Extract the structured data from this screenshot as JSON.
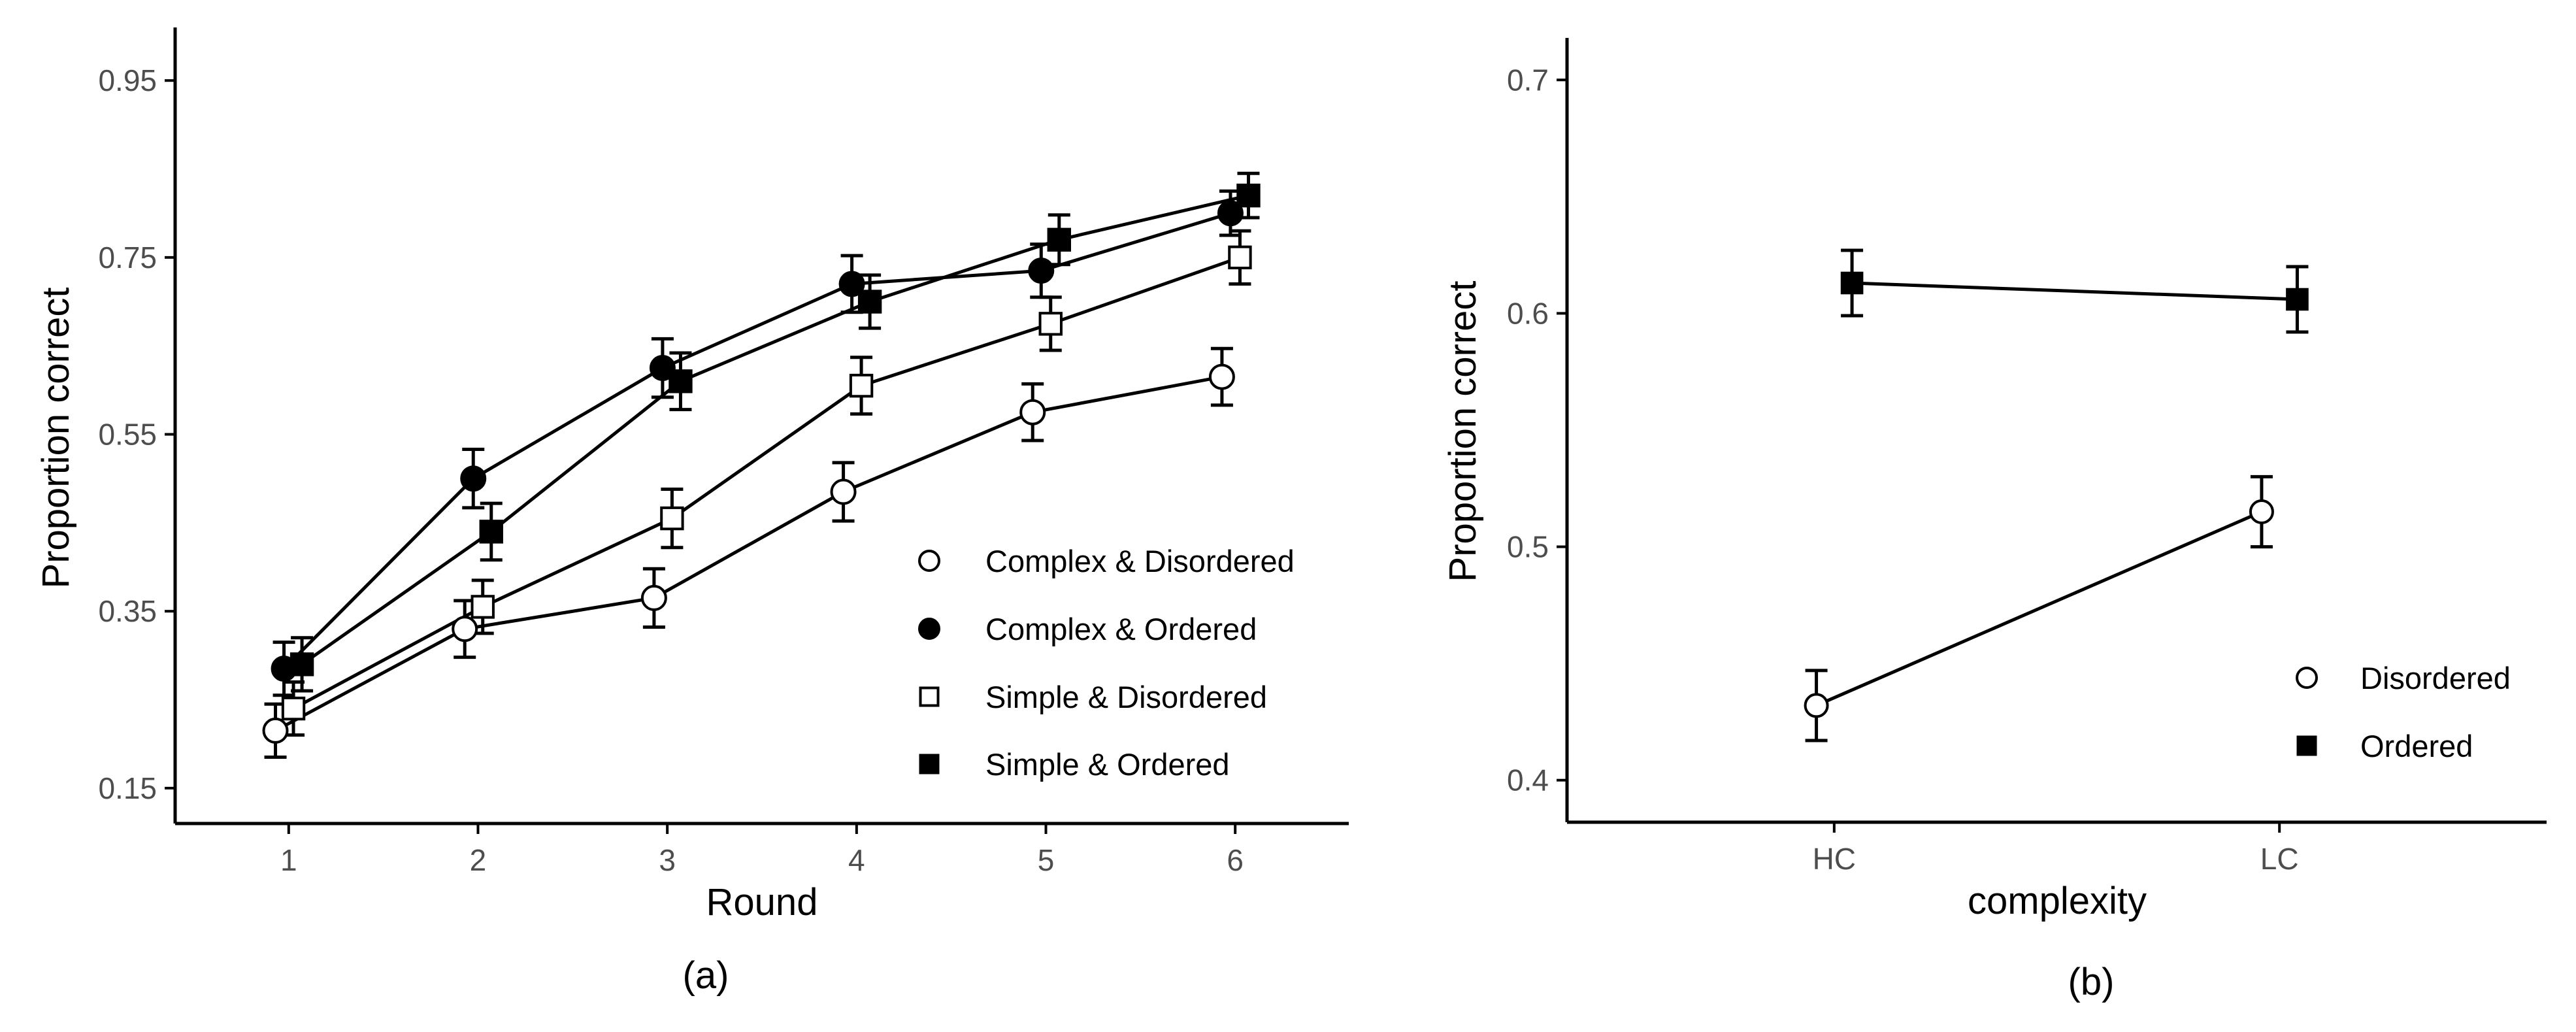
{
  "chart_data": [
    {
      "type": "line",
      "panel_label": "(a)",
      "xlabel": "Round",
      "ylabel": "Proportion correct",
      "x": [
        1,
        2,
        3,
        4,
        5,
        6
      ],
      "x_tick_labels": [
        "1",
        "2",
        "3",
        "4",
        "5",
        "6"
      ],
      "y_ticks": [
        0.15,
        0.35,
        0.55,
        0.75,
        0.95
      ],
      "y_tick_labels": [
        "0.15",
        "0.35",
        "0.55",
        "0.75",
        "0.95"
      ],
      "ylim": [
        0.11,
        1.01
      ],
      "xlim": [
        0.4,
        6.6
      ],
      "legend_position": "bottom-right",
      "series": [
        {
          "name": "Complex & Disordered",
          "marker": "circle",
          "fill": "#ffffff",
          "dodge": -0.07,
          "values": [
            0.215,
            0.33,
            0.365,
            0.485,
            0.575,
            0.615
          ],
          "errors": [
            0.03,
            0.032,
            0.033,
            0.033,
            0.032,
            0.032
          ]
        },
        {
          "name": "Complex & Ordered",
          "marker": "circle",
          "fill": "#000000",
          "dodge": -0.025,
          "values": [
            0.285,
            0.5,
            0.625,
            0.72,
            0.735,
            0.8
          ],
          "errors": [
            0.03,
            0.033,
            0.033,
            0.032,
            0.03,
            0.025
          ]
        },
        {
          "name": "Simple & Disordered",
          "marker": "square",
          "fill": "#ffffff",
          "dodge": 0.025,
          "values": [
            0.24,
            0.355,
            0.455,
            0.605,
            0.675,
            0.75
          ],
          "errors": [
            0.03,
            0.03,
            0.033,
            0.032,
            0.03,
            0.03
          ]
        },
        {
          "name": "Simple & Ordered",
          "marker": "square",
          "fill": "#000000",
          "dodge": 0.07,
          "values": [
            0.29,
            0.44,
            0.61,
            0.7,
            0.77,
            0.82
          ],
          "errors": [
            0.03,
            0.032,
            0.032,
            0.03,
            0.028,
            0.025
          ]
        }
      ]
    },
    {
      "type": "line",
      "panel_label": "(b)",
      "xlabel": "complexity",
      "ylabel": "Proportion correct",
      "categories": [
        "HC",
        "LC"
      ],
      "y_ticks": [
        0.4,
        0.5,
        0.6,
        0.7
      ],
      "y_tick_labels": [
        "0.4",
        "0.5",
        "0.6",
        "0.7"
      ],
      "ylim": [
        0.382,
        0.718
      ],
      "xlim": [
        0.4,
        2.6
      ],
      "legend_position": "bottom-right",
      "series": [
        {
          "name": "Disordered",
          "marker": "circle",
          "fill": "#ffffff",
          "dodge": -0.04,
          "values": [
            0.432,
            0.515
          ],
          "errors": [
            0.015,
            0.015
          ]
        },
        {
          "name": "Ordered",
          "marker": "square",
          "fill": "#000000",
          "dodge": 0.04,
          "values": [
            0.613,
            0.606
          ],
          "errors": [
            0.014,
            0.014
          ]
        }
      ]
    }
  ]
}
